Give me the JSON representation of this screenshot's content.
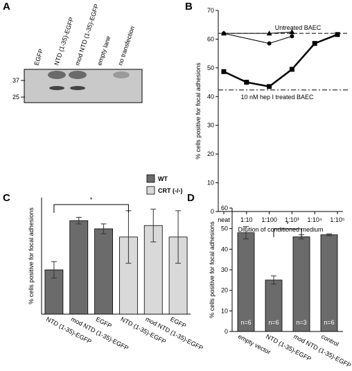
{
  "blot": {
    "panel": "A",
    "lanes": [
      "EGFP",
      "NTD (1-35)-EGFP",
      "mod NTD (1-35)-EGFP",
      "empty lane",
      "no transfection"
    ],
    "markers": [
      37,
      25
    ]
  },
  "chart_data": [
    {
      "type": "line",
      "panel": "B",
      "ylabel": "% cells positive for focal adhesions",
      "xlabel": "Dilution of conditioned medium",
      "categories": [
        "neat",
        "1:10",
        "1:100",
        "1:10³",
        "1:10⁴",
        "1:10⁵"
      ],
      "ylim": [
        0,
        70
      ],
      "yticks": [
        0,
        10,
        20,
        30,
        40,
        50,
        60,
        70
      ],
      "series": [
        {
          "marker": "square",
          "color": "#000000",
          "x": [
            "neat",
            "1:10",
            "1:100",
            "1:10³",
            "1:10⁴",
            "1:10⁵"
          ],
          "values": [
            48.7,
            45,
            43.5,
            49.5,
            58.5,
            61.6
          ]
        },
        {
          "marker": "triangle",
          "color": "#000000",
          "x": [
            "neat",
            "1:100",
            "1:10³"
          ],
          "values": [
            62,
            62,
            62.5
          ]
        },
        {
          "marker": "circle",
          "color": "#000000",
          "x": [
            "neat",
            "1:100",
            "1:10³"
          ],
          "values": [
            62,
            58.5,
            61
          ]
        }
      ],
      "reference_lines": [
        {
          "value": 62,
          "label": "Untreated BAEC",
          "style": "dashed"
        },
        {
          "value": 42.3,
          "label": "10 nM hep I treated BAEC",
          "style": "dashdot"
        }
      ]
    },
    {
      "type": "bar",
      "panel": "C",
      "ylabel": "% cells positive for focal adhesions",
      "categories": [
        "NTD (1-35)-EGFP",
        "mod NTD (1-35)-EGFP",
        "EGFP",
        "NTD (1-35)-EGFP",
        "mod NTD (1-35)-EGFP",
        "EGFP"
      ],
      "ylim": [
        0,
        71
      ],
      "series": [
        {
          "name": "WT",
          "color": "#6b6b6b",
          "values": [
            27,
            57,
            52,
            null,
            null,
            null
          ],
          "errors": [
            5,
            2,
            3,
            null,
            null,
            null
          ]
        },
        {
          "name": "CRT (-/-)",
          "color": "#d9d9d9",
          "values": [
            null,
            null,
            null,
            47,
            54,
            47
          ],
          "errors": [
            null,
            null,
            null,
            16,
            10,
            16
          ]
        }
      ],
      "significance": [
        {
          "between": [
            0,
            3
          ],
          "label": "*"
        }
      ]
    },
    {
      "type": "bar",
      "panel": "D",
      "ylabel": "% cells positive for focal adhesions",
      "categories": [
        "empty vector",
        "NTD (1-35)-EGFP",
        "mod NTD (1-35)-EGFP",
        "control"
      ],
      "ylim": [
        0,
        60
      ],
      "yticks": [
        0,
        10,
        20,
        30,
        40,
        50,
        60
      ],
      "color": "#6b6b6b",
      "values": [
        48,
        25,
        46,
        47
      ],
      "errors": [
        3,
        2,
        1,
        0.5
      ],
      "n_labels": [
        "n=6",
        "n=6",
        "n=3",
        "n=6"
      ],
      "significance": [
        {
          "between": [
            1,
            2
          ],
          "label": "*"
        }
      ]
    }
  ]
}
